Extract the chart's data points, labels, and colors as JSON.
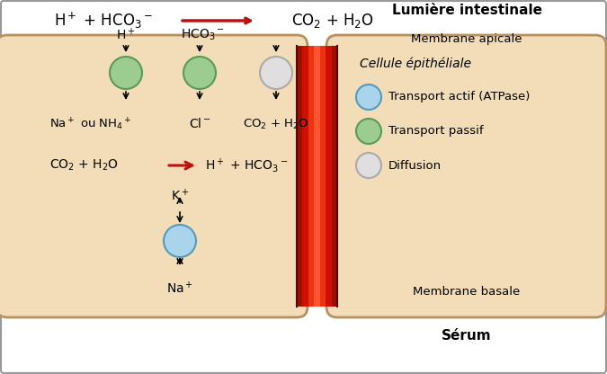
{
  "bg_color": "#ffffff",
  "border_color": "#999999",
  "cell_fill": "#f2ddb8",
  "cell_stroke": "#b89060",
  "red_junction_color": "#cc1100",
  "red_junction_highlight": "#ee3311",
  "top_eq_left": "H⁺ + HCO₃⁻",
  "top_eq_right": "CO₂ + H₂O",
  "arrow_color": "#bb1111",
  "lumiere_label": "Lumière intestinale",
  "membrane_apicale_label": "Membrane apicale",
  "membrane_basale_label": "Membrane basale",
  "serum_label": "Sérum",
  "cellule_label": "Cellule épithéliale",
  "legend_items": [
    {
      "color": "#aad4ec",
      "edge": "#5599bb",
      "label": "Transport actif (ATPase)"
    },
    {
      "color": "#9dcc90",
      "edge": "#5a9a58",
      "label": "Transport passif"
    },
    {
      "color": "#e0dede",
      "edge": "#aaaaaa",
      "label": "Diffusion"
    }
  ],
  "green_fill": "#9dcc90",
  "green_edge": "#5a9a58",
  "gray_fill": "#e0dede",
  "gray_edge": "#aaaaaa",
  "blue_fill": "#aad4ec",
  "blue_edge": "#5599bb",
  "black": "#111111"
}
